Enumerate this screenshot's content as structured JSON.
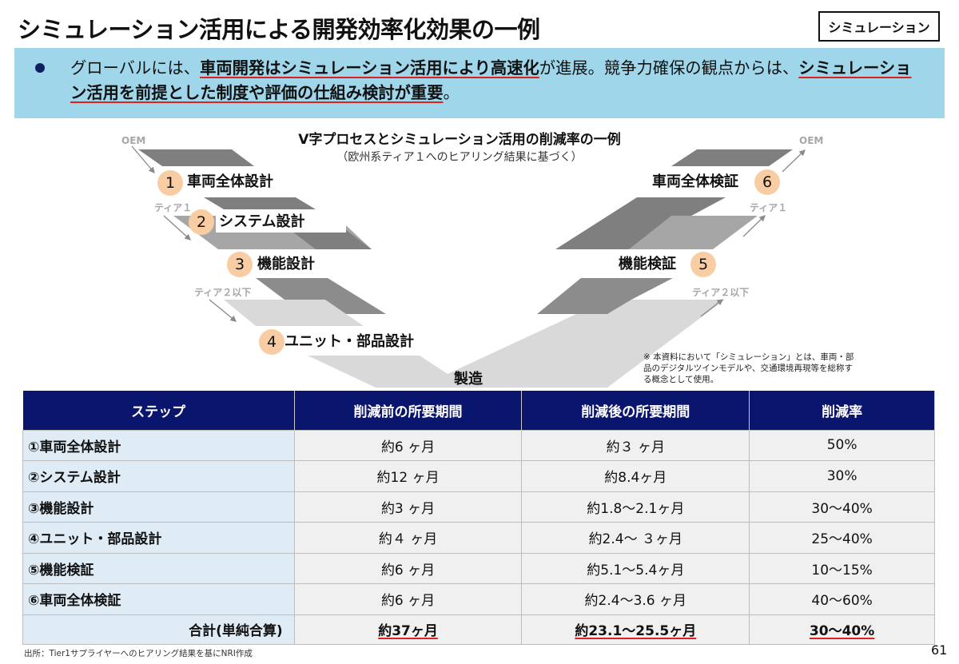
{
  "title": "シミュレーション活用による開発効率化効果の一例",
  "badge": "シミュレーション",
  "banner": {
    "segments": [
      {
        "text": "グローバルには、",
        "emphasis": false
      },
      {
        "text": "車両開発はシミュレーション活用により高速化",
        "emphasis": true
      },
      {
        "text": "が進展。競争力確保の観点からは、",
        "emphasis": false
      },
      {
        "text": "シミュレーション活用を前提とした制度や評価の仕組み検討が重要",
        "emphasis": true
      },
      {
        "text": "。",
        "emphasis": false
      }
    ]
  },
  "diagram": {
    "title": "V字プロセスとシミュレーション活用の削減率の一例",
    "subtitle": "（欧州系ティア１へのヒアリング結果に基づく）",
    "left_tiers": [
      "OEM",
      "ティア１",
      "ティア２以下"
    ],
    "right_tiers": [
      "OEM",
      "ティア１",
      "ティア２以下"
    ],
    "steps": [
      {
        "num": "1",
        "label": "車両全体設計"
      },
      {
        "num": "2",
        "label": "システム設計"
      },
      {
        "num": "3",
        "label": "機能設計"
      },
      {
        "num": "4",
        "label": "ユニット・部品設計"
      },
      {
        "num": "5",
        "label": "機能検証"
      },
      {
        "num": "6",
        "label": "車両全体検証"
      }
    ],
    "bottom": "製造",
    "note": "※ 本資料において「シミュレーション」とは、車両・部品のデジタルツインモデルや、交通環境再現等を総称する概念として使用。",
    "colors": {
      "dark": "#7f7f7f",
      "mid": "#a6a6a6",
      "light": "#d9d9d9",
      "circle": "#f9cda3"
    }
  },
  "table": {
    "headers": [
      "ステップ",
      "削減前の所要期間",
      "削減後の所要期間",
      "削減率"
    ],
    "rows": [
      [
        "①車両全体設計",
        "約6 ヶ月",
        "約３ ヶ月",
        "50%"
      ],
      [
        "②システム設計",
        "約12 ヶ月",
        "約8.4ヶ月",
        "30%"
      ],
      [
        "③機能設計",
        "約3 ヶ月",
        "約1.8～2.1ヶ月",
        "30～40%"
      ],
      [
        "④ユニット・部品設計",
        "約４ ヶ月",
        "約2.4～ ３ヶ月",
        "25～40%"
      ],
      [
        "⑤機能検証",
        "約6 ヶ月",
        "約5.1～5.4ヶ月",
        "10～15%"
      ],
      [
        "⑥車両全体検証",
        "約6 ヶ月",
        "約2.4～3.6 ヶ月",
        "40～60%"
      ]
    ],
    "total": [
      "合計(単純合算)",
      "約37ヶ月",
      "約23.1～25.5ヶ月",
      "30～40%"
    ],
    "header_color": "#0a166e"
  },
  "source": "出所：Tier1サプライヤーへのヒアリング結果を基にNRI作成",
  "page_number": "61"
}
